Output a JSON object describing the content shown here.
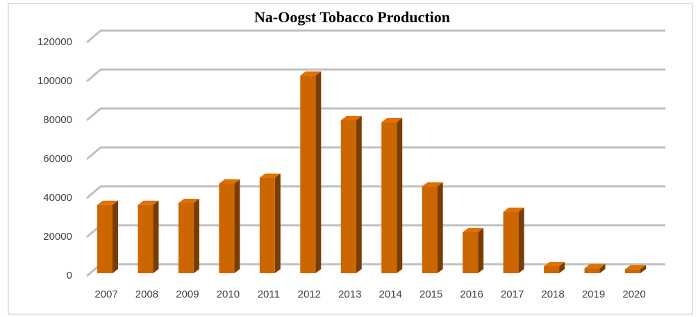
{
  "chart_data": {
    "type": "bar",
    "title": "Na-Oogst Tobacco Production",
    "categories": [
      "2007",
      "2008",
      "2009",
      "2010",
      "2011",
      "2012",
      "2013",
      "2014",
      "2015",
      "2016",
      "2017",
      "2018",
      "2019",
      "2020"
    ],
    "values": [
      36500,
      36500,
      37500,
      47500,
      50500,
      103000,
      80000,
      79000,
      46000,
      22500,
      33000,
      5000,
      4000,
      3500
    ],
    "color": "#cc6600",
    "ylim": [
      0,
      120000
    ],
    "yticks": [
      0,
      20000,
      40000,
      60000,
      80000,
      100000,
      120000
    ],
    "grid": true
  }
}
